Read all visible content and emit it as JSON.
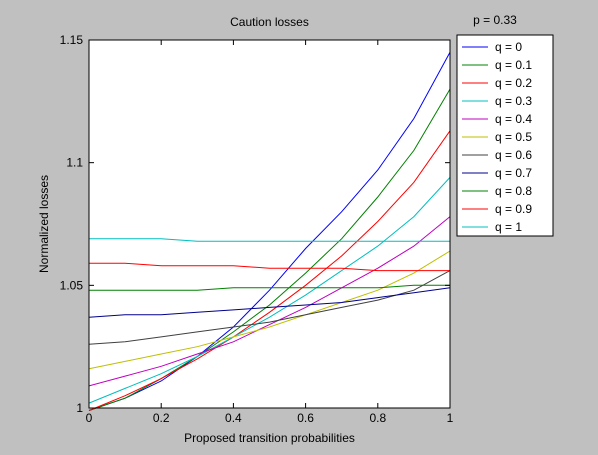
{
  "p_label": "p = 0.33",
  "chart_data": {
    "type": "line",
    "title": "Caution losses",
    "xlabel": "Proposed transition probabilities",
    "ylabel": "Normalized losses",
    "xlim": [
      0,
      1
    ],
    "ylim": [
      1,
      1.15
    ],
    "x_ticks": [
      "0",
      "0.2",
      "0.4",
      "0.6",
      "0.8",
      "1"
    ],
    "y_ticks": [
      "1",
      "1.05",
      "1.1",
      "1.15"
    ],
    "grid": false,
    "legend_position": "outside-right",
    "x": [
      0,
      0.1,
      0.2,
      0.3,
      0.4,
      0.5,
      0.6,
      0.7,
      0.8,
      0.9,
      1
    ],
    "series": [
      {
        "name": "q = 0",
        "color": "#0000ff",
        "values": [
          0.999,
          1.004,
          1.011,
          1.021,
          1.033,
          1.048,
          1.065,
          1.08,
          1.097,
          1.118,
          1.145
        ]
      },
      {
        "name": "q = 0.1",
        "color": "#008000",
        "values": [
          0.999,
          1.004,
          1.012,
          1.021,
          1.031,
          1.042,
          1.055,
          1.069,
          1.086,
          1.105,
          1.13
        ]
      },
      {
        "name": "q = 0.2",
        "color": "#ff0000",
        "values": [
          0.999,
          1.005,
          1.012,
          1.02,
          1.029,
          1.039,
          1.05,
          1.062,
          1.076,
          1.092,
          1.113
        ]
      },
      {
        "name": "q = 0.3",
        "color": "#00bfbf",
        "values": [
          1.002,
          1.008,
          1.014,
          1.021,
          1.029,
          1.037,
          1.046,
          1.056,
          1.066,
          1.078,
          1.094
        ]
      },
      {
        "name": "q = 0.4",
        "color": "#bf00bf",
        "values": [
          1.009,
          1.013,
          1.017,
          1.022,
          1.027,
          1.034,
          1.041,
          1.049,
          1.057,
          1.066,
          1.078
        ]
      },
      {
        "name": "q = 0.5",
        "color": "#bfbf00",
        "values": [
          1.016,
          1.019,
          1.022,
          1.025,
          1.029,
          1.033,
          1.038,
          1.043,
          1.048,
          1.055,
          1.064
        ]
      },
      {
        "name": "q = 0.6",
        "color": "#404040",
        "values": [
          1.026,
          1.027,
          1.029,
          1.031,
          1.033,
          1.035,
          1.038,
          1.041,
          1.044,
          1.048,
          1.056
        ]
      },
      {
        "name": "q = 0.7",
        "color": "#00008b",
        "values": [
          1.037,
          1.038,
          1.038,
          1.039,
          1.04,
          1.041,
          1.042,
          1.043,
          1.045,
          1.047,
          1.049
        ]
      },
      {
        "name": "q = 0.8",
        "color": "#008000",
        "values": [
          1.048,
          1.048,
          1.048,
          1.048,
          1.049,
          1.049,
          1.049,
          1.049,
          1.049,
          1.05,
          1.05
        ]
      },
      {
        "name": "q = 0.9",
        "color": "#ff0000",
        "values": [
          1.059,
          1.059,
          1.058,
          1.058,
          1.058,
          1.057,
          1.057,
          1.057,
          1.056,
          1.056,
          1.056
        ]
      },
      {
        "name": "q = 1",
        "color": "#00bfbf",
        "values": [
          1.069,
          1.069,
          1.069,
          1.068,
          1.068,
          1.068,
          1.068,
          1.068,
          1.068,
          1.068,
          1.068
        ]
      }
    ]
  }
}
